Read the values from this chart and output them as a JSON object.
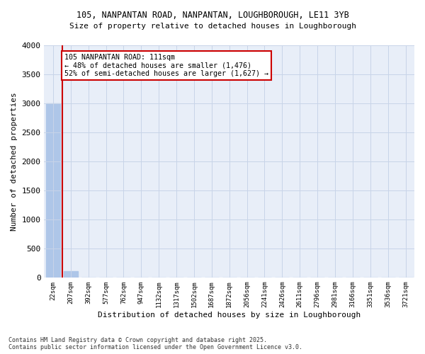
{
  "title1": "105, NANPANTAN ROAD, NANPANTAN, LOUGHBOROUGH, LE11 3YB",
  "title2": "Size of property relative to detached houses in Loughborough",
  "xlabel": "Distribution of detached houses by size in Loughborough",
  "ylabel": "Number of detached properties",
  "categories": [
    "22sqm",
    "207sqm",
    "392sqm",
    "577sqm",
    "762sqm",
    "947sqm",
    "1132sqm",
    "1317sqm",
    "1502sqm",
    "1687sqm",
    "1872sqm",
    "2056sqm",
    "2241sqm",
    "2426sqm",
    "2611sqm",
    "2796sqm",
    "2981sqm",
    "3166sqm",
    "3351sqm",
    "3536sqm",
    "3721sqm"
  ],
  "values": [
    3000,
    110,
    0,
    0,
    0,
    0,
    0,
    0,
    0,
    0,
    0,
    0,
    0,
    0,
    0,
    0,
    0,
    0,
    0,
    0,
    0
  ],
  "bar_color": "#aec6e8",
  "vline_x": 0.52,
  "vline_color": "#cc0000",
  "annotation_text": "105 NANPANTAN ROAD: 111sqm\n← 48% of detached houses are smaller (1,476)\n52% of semi-detached houses are larger (1,627) →",
  "annotation_box_color": "#cc0000",
  "annotation_text_color": "#000000",
  "grid_color": "#c8d4e8",
  "bg_color": "#e8eef8",
  "ylim": [
    0,
    4000
  ],
  "yticks": [
    0,
    500,
    1000,
    1500,
    2000,
    2500,
    3000,
    3500,
    4000
  ],
  "footnote": "Contains HM Land Registry data © Crown copyright and database right 2025.\nContains public sector information licensed under the Open Government Licence v3.0."
}
